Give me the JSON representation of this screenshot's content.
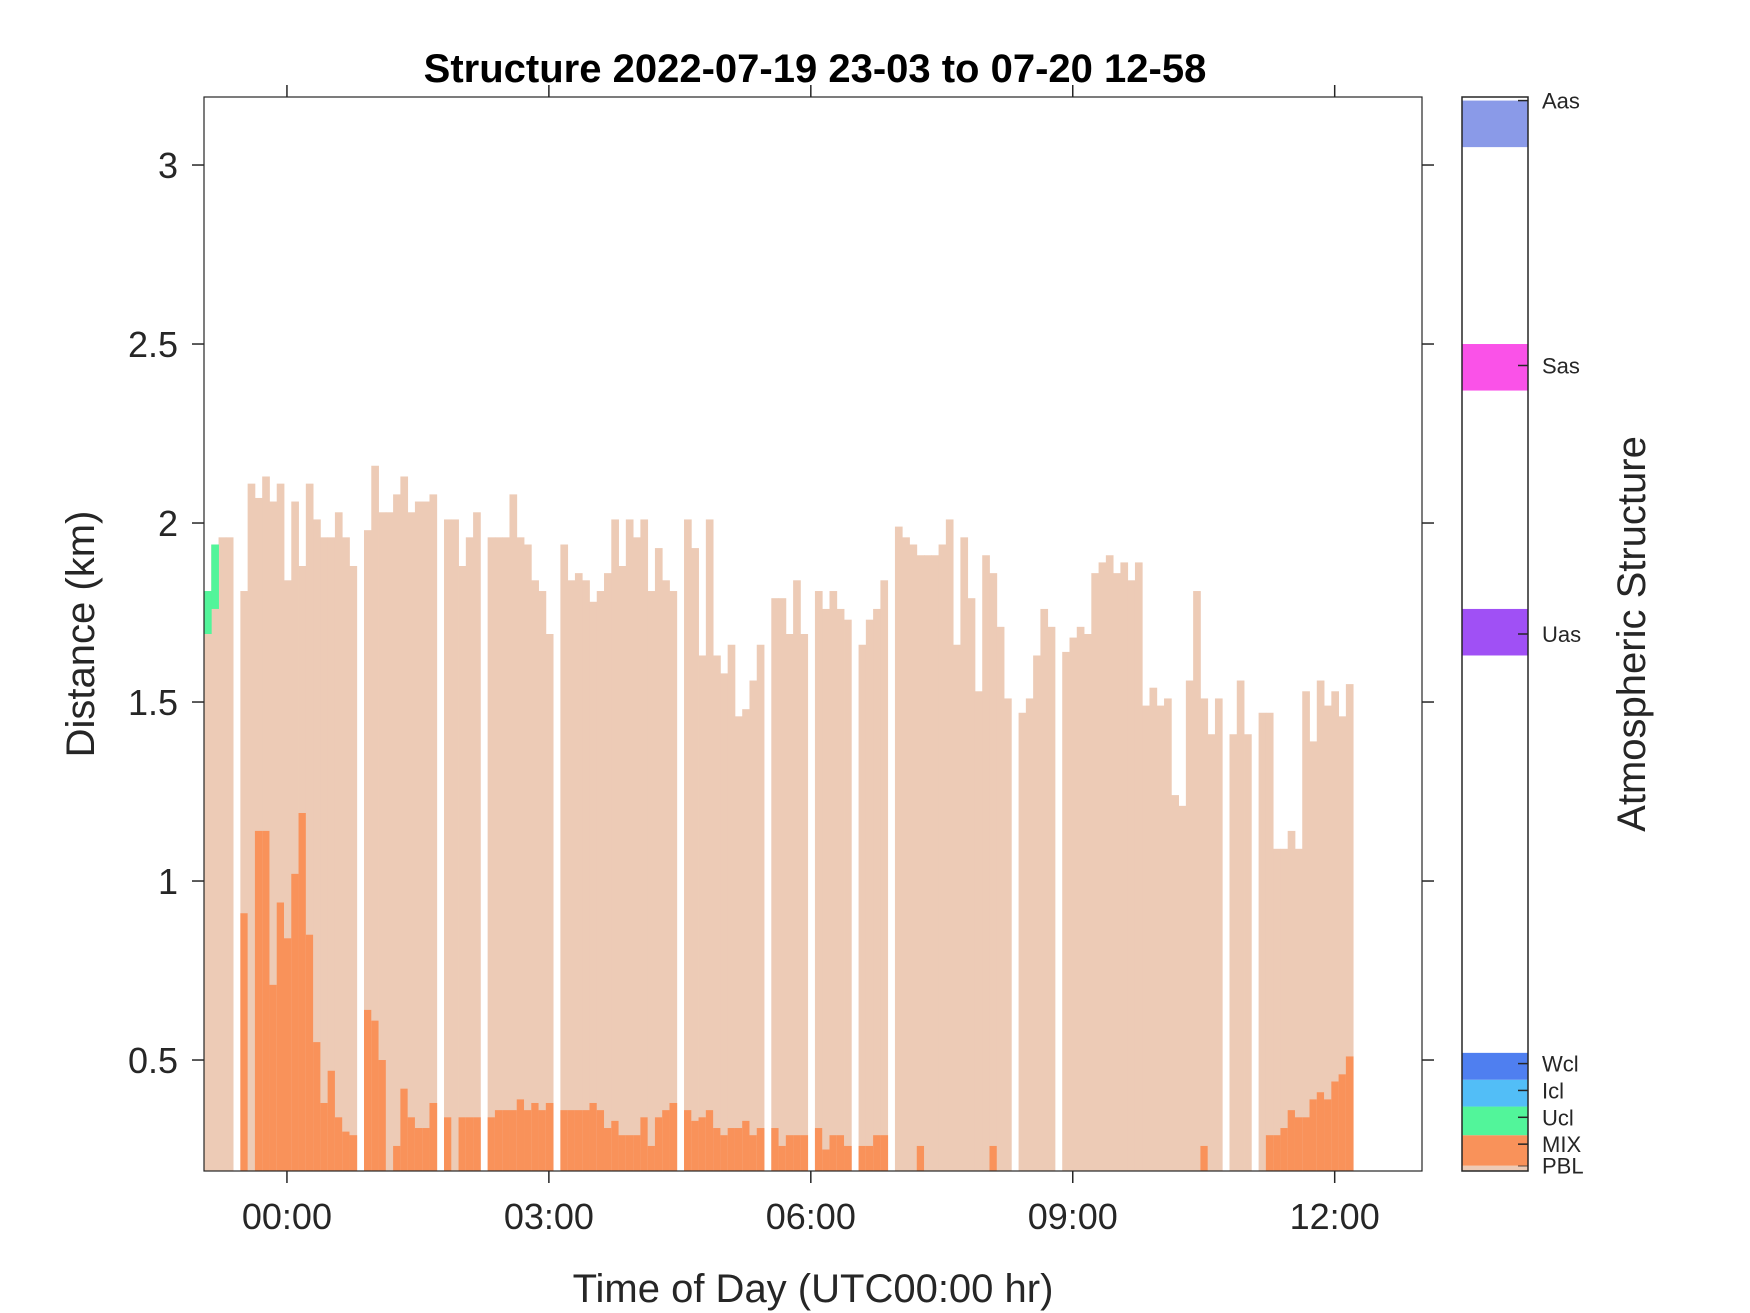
{
  "chart_data": {
    "type": "bar",
    "title": "Structure 2022-07-19 23-03 to 07-20 12-58",
    "xlabel": "Time of Day (UTC00:00 hr)",
    "ylabel": "Distance (km)",
    "colorbar_label": "Atmospheric Structure",
    "x_unit": "hours relative to 2022-07-20 00:00 UTC",
    "x_range": [
      -0.95,
      13.0
    ],
    "ylim": [
      0.19,
      3.19
    ],
    "x_ticks": [
      {
        "value": 0,
        "label": "00:00"
      },
      {
        "value": 3,
        "label": "03:00"
      },
      {
        "value": 6,
        "label": "06:00"
      },
      {
        "value": 9,
        "label": "09:00"
      },
      {
        "value": 12,
        "label": "12:00"
      }
    ],
    "y_ticks": [
      {
        "value": 0.5,
        "label": "0.5"
      },
      {
        "value": 1,
        "label": "1"
      },
      {
        "value": 1.5,
        "label": "1.5"
      },
      {
        "value": 2,
        "label": "2"
      },
      {
        "value": 2.5,
        "label": "2.5"
      },
      {
        "value": 3,
        "label": "3"
      }
    ],
    "bar_width_hours": 0.0833,
    "start_hour": -0.95,
    "colors": {
      "PBL": "#EDCBB6",
      "MIX": "#F9925A",
      "Ucl": "#52F59A",
      "Icl": "#52BEF7",
      "Wcl": "#4F7FF0",
      "Uas": "#A050F5",
      "Sas": "#FA52E8",
      "Aas": "#8A9AE8"
    },
    "colorbar": [
      {
        "name": "PBL",
        "color": "#EDCBB6",
        "label": "PBL"
      },
      {
        "name": "MIX",
        "color": "#F9925A",
        "label": "MIX"
      },
      {
        "name": "Ucl",
        "color": "#52F59A",
        "label": "Ucl"
      },
      {
        "name": "Icl",
        "color": "#52BEF7",
        "label": "Icl"
      },
      {
        "name": "Wcl",
        "color": "#4F7FF0",
        "label": "Wcl"
      },
      {
        "name": "Uas",
        "color": "#A050F5",
        "label": "Uas"
      },
      {
        "name": "Sas",
        "color": "#FA52E8",
        "label": "Sas"
      },
      {
        "name": "Aas",
        "color": "#8A9AE8",
        "label": "Aas"
      }
    ],
    "pbl_top_km": [
      1.81,
      1.94,
      1.96,
      1.96,
      0,
      1.81,
      2.11,
      2.07,
      2.13,
      2.06,
      2.11,
      1.84,
      2.06,
      1.88,
      2.11,
      2.01,
      1.96,
      1.96,
      2.03,
      1.96,
      1.88,
      0,
      1.98,
      2.16,
      2.03,
      2.03,
      2.08,
      2.13,
      2.03,
      2.06,
      2.06,
      2.08,
      0,
      2.01,
      2.01,
      1.88,
      1.96,
      2.03,
      0,
      1.96,
      1.96,
      1.96,
      2.08,
      1.96,
      1.94,
      1.84,
      1.81,
      1.69,
      0,
      1.94,
      1.84,
      1.86,
      1.84,
      1.78,
      1.81,
      1.86,
      2.01,
      1.88,
      2.01,
      1.96,
      2.01,
      1.81,
      1.93,
      1.84,
      1.81,
      0,
      2.01,
      1.93,
      1.63,
      2.01,
      1.63,
      1.58,
      1.66,
      1.46,
      1.48,
      1.56,
      1.66,
      0,
      1.79,
      1.79,
      1.69,
      1.84,
      1.69,
      0,
      1.81,
      1.76,
      1.81,
      1.76,
      1.73,
      0,
      1.66,
      1.73,
      1.76,
      1.84,
      0,
      1.99,
      1.96,
      1.94,
      1.91,
      1.91,
      1.91,
      1.94,
      2.01,
      1.66,
      1.96,
      1.79,
      1.53,
      1.91,
      1.86,
      1.71,
      1.51,
      0,
      1.47,
      1.51,
      1.63,
      1.76,
      1.71,
      0,
      1.64,
      1.68,
      1.71,
      1.69,
      1.86,
      1.89,
      1.91,
      1.86,
      1.89,
      1.84,
      1.89,
      1.49,
      1.54,
      1.49,
      1.51,
      1.24,
      1.21,
      1.56,
      1.81,
      1.51,
      1.41,
      1.51,
      0,
      1.41,
      1.56,
      1.41,
      0,
      1.47,
      1.47,
      1.09,
      1.09,
      1.14,
      1.09,
      1.53,
      1.39,
      1.56,
      1.49,
      1.53,
      1.46,
      1.55
    ],
    "mix_top_km": [
      0,
      0,
      0,
      0,
      0,
      0.91,
      0,
      1.14,
      1.14,
      0.71,
      0.94,
      0.84,
      1.02,
      1.19,
      0.85,
      0.55,
      0.38,
      0.47,
      0.34,
      0.3,
      0.29,
      0,
      0.64,
      0.61,
      0.5,
      0,
      0.26,
      0.42,
      0.34,
      0.31,
      0.31,
      0.38,
      0,
      0.34,
      0,
      0.34,
      0.34,
      0.34,
      0,
      0.34,
      0.36,
      0.36,
      0.36,
      0.39,
      0.36,
      0.38,
      0.36,
      0.38,
      0,
      0.36,
      0.36,
      0.36,
      0.36,
      0.38,
      0.36,
      0.31,
      0.33,
      0.29,
      0.29,
      0.29,
      0.34,
      0.26,
      0.34,
      0.36,
      0.38,
      0,
      0.36,
      0.33,
      0.34,
      0.36,
      0.31,
      0.29,
      0.31,
      0.31,
      0.33,
      0.29,
      0.31,
      0,
      0.31,
      0.26,
      0.29,
      0.29,
      0.29,
      0,
      0.31,
      0.25,
      0.29,
      0.29,
      0.26,
      0,
      0.26,
      0.26,
      0.29,
      0.29,
      0,
      0,
      0,
      0,
      0.26,
      0,
      0,
      0,
      0,
      0,
      0,
      0,
      0,
      0,
      0.26,
      0,
      0,
      0,
      0,
      0,
      0,
      0,
      0,
      0,
      0,
      0,
      0,
      0,
      0,
      0,
      0,
      0,
      0,
      0,
      0,
      0,
      0,
      0,
      0,
      0,
      0,
      0,
      0,
      0.26,
      0,
      0,
      0,
      0,
      0,
      0,
      0,
      0,
      0.29,
      0.29,
      0.31,
      0.36,
      0.34,
      0.34,
      0.39,
      0.41,
      0.39,
      0.44,
      0.46,
      0.51,
      0.34
    ],
    "ucl_layers": [
      {
        "x": -0.95,
        "bottom": 1.69,
        "top": 1.81
      },
      {
        "x": -0.8667,
        "bottom": 1.76,
        "top": 1.94
      }
    ]
  }
}
